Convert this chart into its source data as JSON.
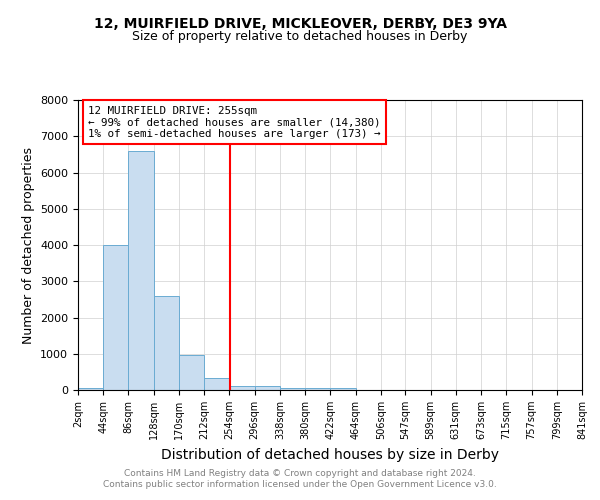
{
  "title1": "12, MUIRFIELD DRIVE, MICKLEOVER, DERBY, DE3 9YA",
  "title2": "Size of property relative to detached houses in Derby",
  "xlabel": "Distribution of detached houses by size in Derby",
  "ylabel": "Number of detached properties",
  "footer1": "Contains HM Land Registry data © Crown copyright and database right 2024.",
  "footer2": "Contains public sector information licensed under the Open Government Licence v3.0.",
  "annotation_line1": "12 MUIRFIELD DRIVE: 255sqm",
  "annotation_line2": "← 99% of detached houses are smaller (14,380)",
  "annotation_line3": "1% of semi-detached houses are larger (173) →",
  "bar_color": "#c9ddf0",
  "bar_edge_color": "#6aabd2",
  "red_line_x": 255,
  "ylim": [
    0,
    8000
  ],
  "yticks": [
    0,
    1000,
    2000,
    3000,
    4000,
    5000,
    6000,
    7000,
    8000
  ],
  "bin_edges": [
    2,
    44,
    86,
    128,
    170,
    212,
    254,
    296,
    338,
    380,
    422,
    464,
    506,
    547,
    589,
    631,
    673,
    715,
    757,
    799,
    841
  ],
  "bin_heights": [
    50,
    4000,
    6600,
    2600,
    970,
    320,
    110,
    120,
    55,
    60,
    60,
    5,
    5,
    5,
    5,
    5,
    5,
    5,
    5,
    5
  ],
  "tick_labels": [
    "2sqm",
    "44sqm",
    "86sqm",
    "128sqm",
    "170sqm",
    "212sqm",
    "254sqm",
    "296sqm",
    "338sqm",
    "380sqm",
    "422sqm",
    "464sqm",
    "506sqm",
    "547sqm",
    "589sqm",
    "631sqm",
    "673sqm",
    "715sqm",
    "757sqm",
    "799sqm",
    "841sqm"
  ]
}
